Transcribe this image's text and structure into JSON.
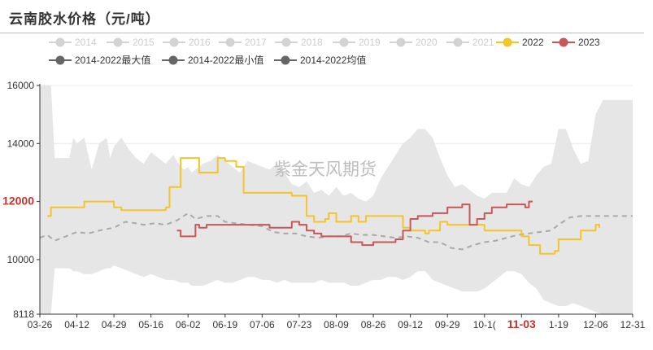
{
  "page": {
    "title": "云南胶水价格（元/吨）",
    "watermark": "紫金天风期货"
  },
  "colors": {
    "band": "#e6e6e6",
    "avg": "#a9a9a9",
    "y2022": "#f5c42b",
    "y2023": "#c9575a",
    "inactive": "#d3d3d3",
    "stat": "#666666",
    "highlight": "#c23531",
    "grid": "#e9e9e9"
  },
  "legend": [
    {
      "label": "2014",
      "active": false,
      "color": "#d3d3d3"
    },
    {
      "label": "2015",
      "active": false,
      "color": "#d3d3d3"
    },
    {
      "label": "2016",
      "active": false,
      "color": "#d3d3d3"
    },
    {
      "label": "2017",
      "active": false,
      "color": "#d3d3d3"
    },
    {
      "label": "2018",
      "active": false,
      "color": "#d3d3d3"
    },
    {
      "label": "2019",
      "active": false,
      "color": "#d3d3d3"
    },
    {
      "label": "2020",
      "active": false,
      "color": "#d3d3d3"
    },
    {
      "label": "2021",
      "active": false,
      "color": "#d3d3d3"
    },
    {
      "label": "2022",
      "active": true,
      "color": "#f5c42b"
    },
    {
      "label": "2023",
      "active": true,
      "color": "#c9575a"
    },
    {
      "label": "2014-2022最大值",
      "active": true,
      "color": "#666666"
    },
    {
      "label": "2014-2022最小值",
      "active": true,
      "color": "#666666"
    },
    {
      "label": "2014-2022均值",
      "active": true,
      "color": "#666666"
    }
  ],
  "chart_data": {
    "type": "line",
    "title": "云南胶水价格（元/吨）",
    "x_ticks": [
      "03-26",
      "04-12",
      "04-29",
      "05-16",
      "06-02",
      "06-19",
      "07-06",
      "07-23",
      "08-09",
      "08-26",
      "09-12",
      "09-29",
      "10-1(",
      "11-03",
      "1-19",
      "12-06",
      "12-31"
    ],
    "highlight_x": "11-03",
    "ylim": [
      8118,
      16000
    ],
    "y_ticks": [
      8118,
      10000,
      12000,
      14000,
      16000
    ],
    "highlight_y": "12000",
    "grid": true,
    "legend_position": "top",
    "band": {
      "x": [
        0,
        0.1,
        0.2,
        0.3,
        0.4,
        0.6,
        0.8,
        0.9,
        1,
        1.2,
        1.4,
        1.6,
        1.8,
        1.9,
        2,
        2.2,
        2.4,
        2.6,
        2.8,
        3,
        3.2,
        3.4,
        3.6,
        3.8,
        3.9,
        4,
        4.1,
        4.2,
        4.4,
        4.6,
        4.8,
        5,
        5.2,
        5.4,
        5.6,
        5.8,
        6,
        6.2,
        6.4,
        6.6,
        6.8,
        7,
        7.2,
        7.4,
        7.6,
        7.8,
        8,
        8.2,
        8.4,
        8.6,
        8.8,
        9,
        9.2,
        9.4,
        9.6,
        9.8,
        10,
        10.2,
        10.4,
        10.6,
        10.8,
        11,
        11.2,
        11.4,
        11.6,
        11.8,
        12,
        12.2,
        12.4,
        12.6,
        12.8,
        13,
        13.2,
        13.4,
        13.6,
        13.8,
        14,
        14.2,
        14.4,
        14.6,
        14.8,
        15,
        15.2,
        15.4,
        15.6,
        15.8,
        16
      ],
      "max": [
        16000,
        16000,
        16000,
        16000,
        13500,
        13500,
        13500,
        14200,
        14000,
        14200,
        13100,
        14000,
        14200,
        13500,
        13900,
        14200,
        13800,
        13500,
        13300,
        13700,
        13500,
        13300,
        13600,
        13200,
        13100,
        13200,
        13000,
        13100,
        13300,
        13400,
        13600,
        13400,
        13200,
        13000,
        13400,
        13300,
        13200,
        13100,
        13300,
        13000,
        12600,
        12500,
        12700,
        12300,
        12400,
        12200,
        12500,
        12200,
        12300,
        12100,
        12000,
        12200,
        12800,
        13200,
        13600,
        14000,
        14200,
        14500,
        14500,
        14200,
        13500,
        12900,
        12500,
        12600,
        12400,
        12200,
        12100,
        12300,
        12300,
        12300,
        12800,
        12600,
        12500,
        12900,
        13200,
        13300,
        14500,
        14500,
        13800,
        13300,
        13400,
        15000,
        15500,
        15500,
        15500,
        15500,
        15500
      ],
      "min": [
        8118,
        8118,
        8118,
        8118,
        9700,
        9700,
        9700,
        9600,
        9600,
        9500,
        9500,
        9600,
        9700,
        9700,
        9800,
        9700,
        9600,
        9500,
        9400,
        9500,
        9400,
        9300,
        9300,
        9200,
        9200,
        9200,
        9100,
        9100,
        9100,
        9200,
        9300,
        9200,
        9200,
        9300,
        9400,
        9400,
        9300,
        9300,
        9200,
        9300,
        9200,
        9200,
        9200,
        9200,
        9300,
        9200,
        9200,
        9200,
        9100,
        9100,
        9200,
        9300,
        9300,
        9400,
        9400,
        9300,
        9400,
        9600,
        9600,
        9300,
        9200,
        9100,
        9000,
        8900,
        8900,
        8900,
        9000,
        9200,
        9400,
        9600,
        9600,
        9500,
        9200,
        9000,
        8600,
        8500,
        8400,
        8400,
        8500,
        8400,
        8300,
        8200,
        8118,
        8118,
        8118,
        8118,
        8118
      ]
    },
    "series": [
      {
        "name": "2014-2022均值",
        "x": [
          0,
          0.2,
          0.4,
          0.7,
          1,
          1.3,
          1.6,
          2,
          2.3,
          2.6,
          2.8,
          3.1,
          3.4,
          3.7,
          4,
          4.2,
          4.5,
          4.8,
          5,
          5.3,
          5.6,
          6,
          6.3,
          6.6,
          6.9,
          7.2,
          7.5,
          7.8,
          8.1,
          8.4,
          8.7,
          9,
          9.3,
          9.6,
          9.9,
          10.2,
          10.5,
          10.8,
          11.1,
          11.4,
          11.7,
          12,
          12.3,
          12.6,
          12.9,
          13.2,
          13.5,
          13.8,
          14,
          14.3,
          14.6,
          15,
          15.3,
          15.6,
          16
        ],
        "values": [
          10750,
          10850,
          10650,
          10800,
          10950,
          10900,
          11000,
          11100,
          11300,
          11250,
          11200,
          11250,
          11200,
          11350,
          11600,
          11400,
          11500,
          11500,
          11300,
          11250,
          11200,
          11150,
          10950,
          10900,
          10900,
          10800,
          10750,
          10800,
          10800,
          10900,
          10850,
          10850,
          10800,
          10750,
          10800,
          10750,
          10600,
          10600,
          10400,
          10350,
          10500,
          10600,
          10650,
          10750,
          10850,
          10900,
          10950,
          11000,
          11200,
          11450,
          11500,
          11500,
          11500,
          11500,
          11500
        ]
      },
      {
        "name": "2022",
        "x": [
          0.2,
          0.3,
          0.5,
          0.8,
          1,
          1.2,
          1.5,
          1.8,
          2,
          2.2,
          2.5,
          2.8,
          3,
          3.2,
          3.4,
          3.5,
          3.7,
          3.8,
          4,
          4.3,
          4.5,
          4.8,
          5,
          5.3,
          5.5,
          5.7,
          6,
          6.3,
          6.5,
          6.8,
          6.9,
          7,
          7.2,
          7.4,
          7.5,
          7.7,
          7.8,
          8,
          8.2,
          8.4,
          8.5,
          8.6,
          8.8,
          9,
          9.2,
          9.4,
          9.6,
          9.8,
          10,
          10.2,
          10.4,
          10.5,
          10.6,
          10.8,
          11,
          11.2,
          11.3,
          11.5,
          11.7,
          12,
          12.2,
          12.4,
          12.6,
          12.8,
          13,
          13.1,
          13.2,
          13.3,
          13.5,
          13.7,
          13.9,
          14,
          14.2,
          14.4,
          14.6,
          14.8,
          15,
          15.1
        ],
        "values": [
          11500,
          11800,
          11800,
          11800,
          11800,
          12000,
          12000,
          12000,
          11800,
          11700,
          11700,
          11700,
          11700,
          11700,
          11800,
          12500,
          12500,
          13500,
          13500,
          13000,
          13000,
          13500,
          13400,
          13200,
          12300,
          12300,
          12300,
          12300,
          12300,
          12200,
          12200,
          12200,
          11500,
          11300,
          11300,
          11400,
          11600,
          11300,
          11300,
          11500,
          11500,
          11300,
          11500,
          11500,
          11500,
          11500,
          11500,
          11100,
          11000,
          11000,
          10900,
          11000,
          11000,
          11300,
          11200,
          11200,
          11200,
          11200,
          11200,
          11000,
          11000,
          11000,
          11000,
          11000,
          10800,
          10800,
          10500,
          10500,
          10200,
          10200,
          10300,
          10700,
          10700,
          10700,
          11000,
          11000,
          11200,
          11100
        ]
      },
      {
        "name": "2023",
        "x": [
          3.7,
          3.8,
          3.9,
          4,
          4.2,
          4.3,
          4.4,
          4.5,
          4.6,
          4.8,
          5,
          5.2,
          5.4,
          5.6,
          5.8,
          6,
          6.2,
          6.4,
          6.6,
          6.8,
          7,
          7.2,
          7.4,
          7.6,
          7.8,
          8,
          8.2,
          8.4,
          8.5,
          8.7,
          8.9,
          9,
          9.2,
          9.4,
          9.6,
          9.8,
          10,
          10.2,
          10.4,
          10.6,
          10.8,
          11,
          11.2,
          11.4,
          11.6,
          11.8,
          12,
          12.2,
          12.4,
          12.6,
          12.8,
          13,
          13.1,
          13.2,
          13.3
        ],
        "values": [
          11000,
          10800,
          10800,
          10800,
          11200,
          11100,
          11100,
          11200,
          11200,
          11200,
          11200,
          11200,
          11200,
          11200,
          11200,
          11200,
          11100,
          11100,
          11100,
          11300,
          11200,
          11000,
          10900,
          10800,
          10800,
          10800,
          10800,
          10600,
          10600,
          10500,
          10500,
          10600,
          10600,
          10600,
          10700,
          11000,
          11400,
          11500,
          11500,
          11600,
          11600,
          11800,
          11800,
          11900,
          11200,
          11400,
          11600,
          11800,
          11800,
          11900,
          11900,
          11900,
          11800,
          12000,
          12000
        ]
      }
    ]
  }
}
